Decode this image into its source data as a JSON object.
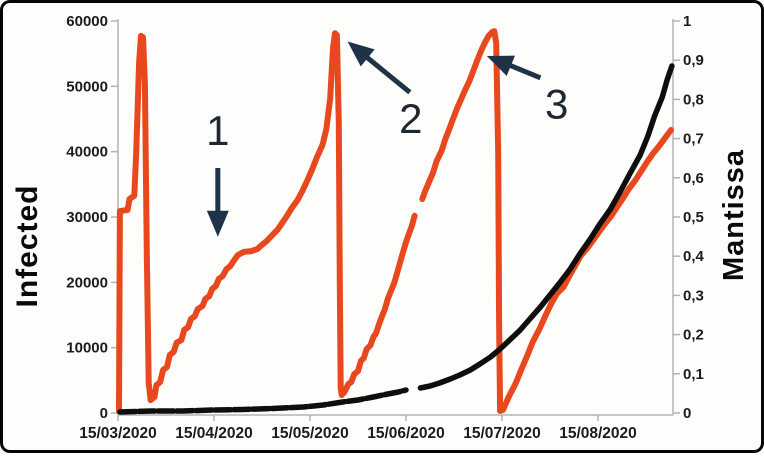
{
  "chart_data": {
    "type": "line",
    "title": "",
    "x_axis": {
      "ticks": [
        {
          "t": 0,
          "label": "15/03/2020"
        },
        {
          "t": 1,
          "label": "15/04/2020"
        },
        {
          "t": 2,
          "label": "15/05/2020"
        },
        {
          "t": 3,
          "label": "15/06/2020"
        },
        {
          "t": 4,
          "label": "15/07/2020"
        },
        {
          "t": 5,
          "label": "15/08/2020"
        }
      ],
      "range_months": [
        0,
        5.78
      ],
      "grid": false
    },
    "left_axis": {
      "title": "Infected",
      "min": 0,
      "max": 60000,
      "ticks": [
        {
          "v": 60000,
          "label": "60000"
        },
        {
          "v": 50000,
          "label": "50000"
        },
        {
          "v": 40000,
          "label": "40000"
        },
        {
          "v": 30000,
          "label": "30000"
        },
        {
          "v": 20000,
          "label": "20000"
        },
        {
          "v": 10000,
          "label": "10000"
        },
        {
          "v": 0,
          "label": "0"
        }
      ]
    },
    "right_axis": {
      "title": "Mantissa",
      "min": 0,
      "max": 1,
      "ticks": [
        {
          "v": 1.0,
          "label": "1"
        },
        {
          "v": 0.9,
          "label": "0,9"
        },
        {
          "v": 0.8,
          "label": "0,8"
        },
        {
          "v": 0.7,
          "label": "0,7"
        },
        {
          "v": 0.6,
          "label": "0,6"
        },
        {
          "v": 0.5,
          "label": "0,5"
        },
        {
          "v": 0.4,
          "label": "0,4"
        },
        {
          "v": 0.3,
          "label": "0,3"
        },
        {
          "v": 0.2,
          "label": "0,2"
        },
        {
          "v": 0.1,
          "label": "0,1"
        },
        {
          "v": 0.0,
          "label": "0"
        }
      ]
    },
    "series": [
      {
        "name": "mantissa",
        "axis": "right",
        "color": "#e8481d",
        "width": 6,
        "segments": [
          [
            [
              0.01,
              0.005
            ],
            [
              0.02,
              0.515
            ],
            [
              0.1,
              0.518
            ],
            [
              0.12,
              0.546
            ],
            [
              0.17,
              0.554
            ],
            [
              0.19,
              0.663
            ],
            [
              0.22,
              0.893
            ],
            [
              0.24,
              0.962
            ],
            [
              0.26,
              0.959
            ],
            [
              0.28,
              0.842
            ],
            [
              0.3,
              0.408
            ],
            [
              0.32,
              0.077
            ],
            [
              0.34,
              0.033
            ],
            [
              0.38,
              0.041
            ],
            [
              0.4,
              0.071
            ],
            [
              0.44,
              0.079
            ],
            [
              0.47,
              0.11
            ],
            [
              0.51,
              0.117
            ],
            [
              0.54,
              0.148
            ],
            [
              0.58,
              0.156
            ],
            [
              0.61,
              0.179
            ],
            [
              0.66,
              0.186
            ],
            [
              0.69,
              0.212
            ],
            [
              0.73,
              0.219
            ],
            [
              0.76,
              0.24
            ],
            [
              0.8,
              0.247
            ],
            [
              0.83,
              0.265
            ],
            [
              0.88,
              0.273
            ],
            [
              0.91,
              0.291
            ],
            [
              0.95,
              0.298
            ],
            [
              0.98,
              0.316
            ],
            [
              1.02,
              0.324
            ],
            [
              1.05,
              0.342
            ],
            [
              1.09,
              0.349
            ],
            [
              1.13,
              0.367
            ],
            [
              1.17,
              0.375
            ],
            [
              1.21,
              0.39
            ],
            [
              1.25,
              0.403
            ],
            [
              1.31,
              0.411
            ],
            [
              1.39,
              0.413
            ],
            [
              1.45,
              0.418
            ],
            [
              1.5,
              0.429
            ],
            [
              1.55,
              0.439
            ],
            [
              1.6,
              0.452
            ],
            [
              1.66,
              0.467
            ],
            [
              1.71,
              0.485
            ],
            [
              1.76,
              0.503
            ],
            [
              1.81,
              0.523
            ],
            [
              1.87,
              0.543
            ],
            [
              1.92,
              0.566
            ],
            [
              1.97,
              0.592
            ],
            [
              2.02,
              0.62
            ],
            [
              2.07,
              0.651
            ],
            [
              2.13,
              0.684
            ],
            [
              2.17,
              0.724
            ],
            [
              2.21,
              0.803
            ],
            [
              2.24,
              0.931
            ],
            [
              2.26,
              0.969
            ],
            [
              2.28,
              0.964
            ],
            [
              2.3,
              0.74
            ],
            [
              2.31,
              0.332
            ],
            [
              2.32,
              0.064
            ],
            [
              2.33,
              0.046
            ],
            [
              2.36,
              0.054
            ],
            [
              2.4,
              0.074
            ],
            [
              2.43,
              0.079
            ],
            [
              2.46,
              0.099
            ],
            [
              2.5,
              0.107
            ],
            [
              2.53,
              0.133
            ],
            [
              2.56,
              0.14
            ],
            [
              2.59,
              0.163
            ],
            [
              2.63,
              0.173
            ],
            [
              2.66,
              0.194
            ],
            [
              2.69,
              0.204
            ],
            [
              2.72,
              0.227
            ],
            [
              2.75,
              0.247
            ],
            [
              2.78,
              0.265
            ],
            [
              2.81,
              0.291
            ],
            [
              2.84,
              0.309
            ],
            [
              2.88,
              0.334
            ],
            [
              2.91,
              0.36
            ],
            [
              2.94,
              0.385
            ],
            [
              2.97,
              0.411
            ],
            [
              3.0,
              0.436
            ],
            [
              3.03,
              0.457
            ],
            [
              3.06,
              0.477
            ],
            [
              3.09,
              0.503
            ]
          ],
          [
            [
              3.17,
              0.546
            ],
            [
              3.2,
              0.566
            ],
            [
              3.24,
              0.589
            ],
            [
              3.28,
              0.612
            ],
            [
              3.32,
              0.643
            ],
            [
              3.37,
              0.668
            ],
            [
              3.41,
              0.699
            ],
            [
              3.45,
              0.724
            ],
            [
              3.49,
              0.75
            ],
            [
              3.53,
              0.776
            ],
            [
              3.57,
              0.798
            ],
            [
              3.61,
              0.821
            ],
            [
              3.66,
              0.847
            ],
            [
              3.7,
              0.872
            ],
            [
              3.74,
              0.898
            ],
            [
              3.78,
              0.923
            ],
            [
              3.82,
              0.944
            ],
            [
              3.86,
              0.962
            ],
            [
              3.9,
              0.972
            ],
            [
              3.92,
              0.974
            ],
            [
              3.94,
              0.944
            ],
            [
              3.96,
              0.663
            ],
            [
              3.97,
              0.23
            ],
            [
              3.98,
              0.005
            ],
            [
              4.01,
              0.008
            ],
            [
              4.07,
              0.041
            ],
            [
              4.14,
              0.074
            ],
            [
              4.2,
              0.11
            ],
            [
              4.26,
              0.145
            ],
            [
              4.32,
              0.181
            ],
            [
              4.39,
              0.214
            ],
            [
              4.45,
              0.247
            ],
            [
              4.51,
              0.278
            ],
            [
              4.57,
              0.304
            ],
            [
              4.64,
              0.321
            ],
            [
              4.7,
              0.349
            ],
            [
              4.76,
              0.375
            ],
            [
              4.82,
              0.401
            ],
            [
              4.89,
              0.421
            ],
            [
              4.95,
              0.441
            ],
            [
              5.01,
              0.462
            ],
            [
              5.07,
              0.482
            ],
            [
              5.14,
              0.503
            ],
            [
              5.2,
              0.526
            ],
            [
              5.26,
              0.548
            ],
            [
              5.32,
              0.571
            ],
            [
              5.39,
              0.594
            ],
            [
              5.45,
              0.617
            ],
            [
              5.51,
              0.64
            ],
            [
              5.57,
              0.661
            ],
            [
              5.63,
              0.679
            ],
            [
              5.7,
              0.702
            ],
            [
              5.76,
              0.722
            ]
          ]
        ]
      },
      {
        "name": "infected",
        "axis": "left",
        "color": "#0e0e0e",
        "width": 5.5,
        "dash_first_segment": "16 3",
        "segments": [
          [
            [
              0.02,
              150
            ],
            [
              0.36,
              300
            ],
            [
              0.68,
              300
            ],
            [
              0.99,
              460
            ],
            [
              1.3,
              540
            ],
            [
              1.61,
              690
            ],
            [
              1.93,
              920
            ],
            [
              2.14,
              1220
            ],
            [
              2.34,
              1680
            ],
            [
              2.5,
              1990
            ],
            [
              2.66,
              2450
            ],
            [
              2.81,
              2910
            ],
            [
              2.92,
              3210
            ],
            [
              3.0,
              3520
            ]
          ],
          [
            [
              3.15,
              3830
            ],
            [
              3.25,
              4130
            ],
            [
              3.35,
              4590
            ],
            [
              3.46,
              5200
            ],
            [
              3.56,
              5820
            ],
            [
              3.67,
              6580
            ],
            [
              3.77,
              7500
            ],
            [
              3.88,
              8570
            ],
            [
              3.98,
              9800
            ],
            [
              4.08,
              11170
            ],
            [
              4.19,
              12700
            ],
            [
              4.29,
              14390
            ],
            [
              4.4,
              16220
            ],
            [
              4.5,
              18060
            ],
            [
              4.6,
              19900
            ],
            [
              4.71,
              22040
            ],
            [
              4.81,
              24340
            ],
            [
              4.92,
              26630
            ],
            [
              5.02,
              28930
            ],
            [
              5.13,
              31220
            ],
            [
              5.23,
              33830
            ],
            [
              5.33,
              36580
            ],
            [
              5.44,
              39490
            ],
            [
              5.52,
              42400
            ],
            [
              5.59,
              45460
            ],
            [
              5.67,
              48370
            ],
            [
              5.72,
              50970
            ],
            [
              5.77,
              53110
            ]
          ]
        ]
      }
    ],
    "annotations": [
      {
        "label": "1",
        "label_pos": [
          1.04,
          0.72
        ],
        "tail": [
          1.04,
          0.625
        ],
        "tip": [
          1.04,
          0.465
        ]
      },
      {
        "label": "2",
        "label_pos": [
          3.05,
          0.75
        ],
        "tail": [
          3.04,
          0.818
        ],
        "tip": [
          2.44,
          0.938
        ]
      },
      {
        "label": "3",
        "label_pos": [
          4.57,
          0.787
        ],
        "tail": [
          4.4,
          0.855
        ],
        "tip": [
          3.9,
          0.905
        ]
      }
    ],
    "colors": {
      "mantissa_line": "#e8481d",
      "infected_line": "#0e0e0e",
      "arrow": "#1e3248",
      "annotation_text": "#1f2733",
      "axis_line": "#b3b3b3",
      "tick_text": "#1c1c1c"
    },
    "legend": {
      "visible": false
    }
  }
}
